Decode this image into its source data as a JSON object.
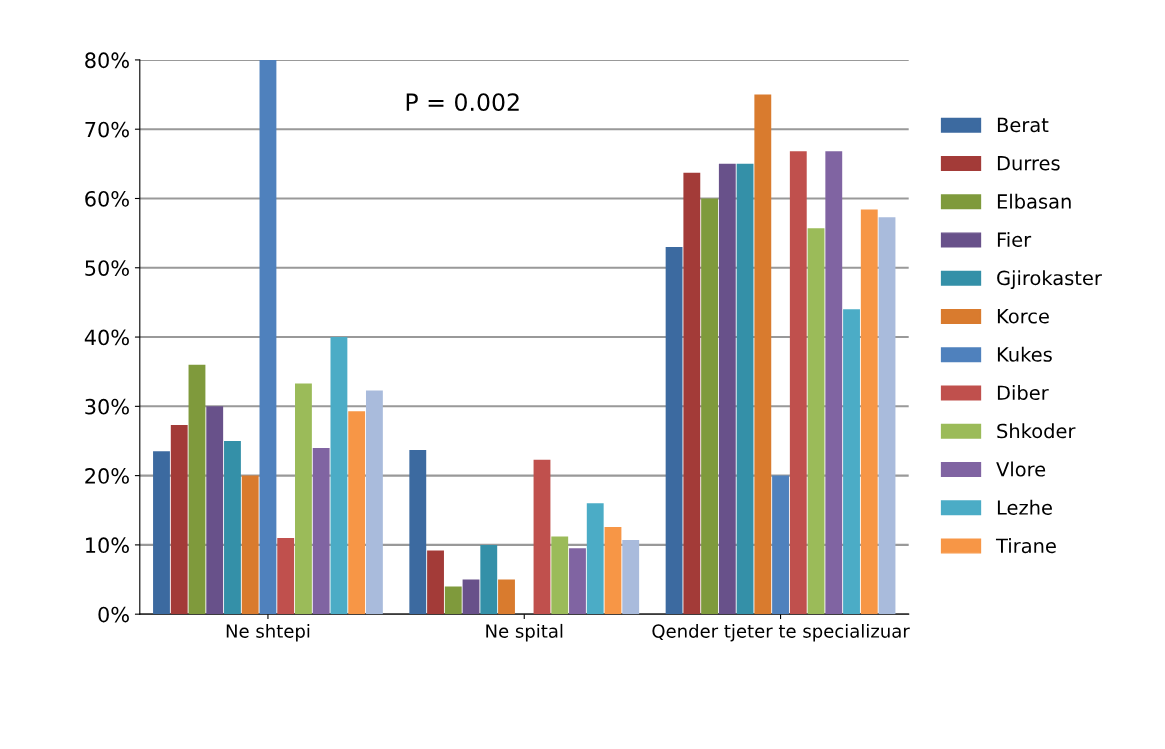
{
  "chart_data": {
    "type": "bar",
    "categories": [
      "Ne shtepi",
      "Ne spital",
      "Qender tjeter te specializuar"
    ],
    "series": [
      {
        "name": "Berat",
        "color": "#3c6aa0",
        "values": [
          23.5,
          23.7,
          53
        ]
      },
      {
        "name": "Durres",
        "color": "#a33b38",
        "values": [
          27.3,
          9.2,
          63.7
        ]
      },
      {
        "name": "Elbasan",
        "color": "#7f9a3c",
        "values": [
          36,
          4,
          60
        ]
      },
      {
        "name": "Fier",
        "color": "#68518a",
        "values": [
          30,
          5,
          65
        ]
      },
      {
        "name": "Gjirokaster",
        "color": "#3490a8",
        "values": [
          25,
          10,
          65
        ]
      },
      {
        "name": "Korce",
        "color": "#d97b2e",
        "values": [
          20,
          5,
          75
        ]
      },
      {
        "name": "Kukes",
        "color": "#4f81bd",
        "values": [
          80,
          0,
          20
        ]
      },
      {
        "name": "Diber",
        "color": "#c0504d",
        "values": [
          11,
          22.3,
          66.8
        ]
      },
      {
        "name": "Shkoder",
        "color": "#9bbb59",
        "values": [
          33.3,
          11.2,
          55.7
        ]
      },
      {
        "name": "Vlore",
        "color": "#8064a2",
        "values": [
          24,
          9.5,
          66.8
        ]
      },
      {
        "name": "Lezhe",
        "color": "#4bacc6",
        "values": [
          40,
          16,
          44
        ]
      },
      {
        "name": "Tirane",
        "color": "#f79646",
        "values": [
          29.3,
          12.6,
          58.4
        ]
      },
      {
        "color": "#a9bbdc",
        "values": [
          32.3,
          10.7,
          57.3
        ]
      }
    ],
    "ylim": [
      0,
      80
    ],
    "yticks": [
      {
        "value": 0,
        "label": "0%"
      },
      {
        "value": 10,
        "label": "10%"
      },
      {
        "value": 20,
        "label": "20%"
      },
      {
        "value": 30,
        "label": "30%"
      },
      {
        "value": 40,
        "label": "40%"
      },
      {
        "value": 50,
        "label": "50%"
      },
      {
        "value": 60,
        "label": "60%"
      },
      {
        "value": 70,
        "label": "70%"
      },
      {
        "value": 80,
        "label": "80%"
      }
    ],
    "annotations": [
      "P = 0.002"
    ],
    "grid": "y",
    "legend": "right"
  }
}
